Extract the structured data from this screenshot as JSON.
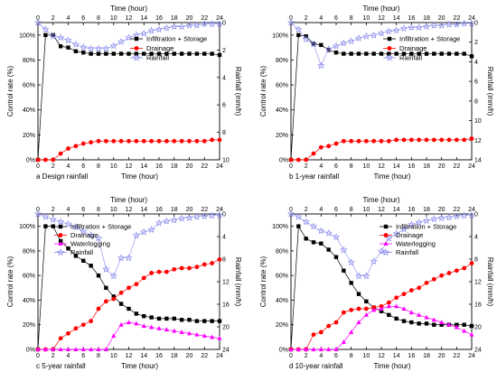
{
  "chart_data": [
    {
      "type": "line",
      "caption": "a Design rainfall",
      "x_top_label": "Time (hour)",
      "x_bottom_label": "Time (hour)",
      "ylabel": "Control rate (%)",
      "y2label": "Rainfall (mm/h)",
      "xlim": [
        0,
        24
      ],
      "xticks": [
        0,
        2,
        4,
        6,
        8,
        10,
        12,
        14,
        16,
        18,
        20,
        22,
        24
      ],
      "ylim": [
        0,
        110
      ],
      "yticks": [
        "0%",
        "20%",
        "40%",
        "60%",
        "80%",
        "100%"
      ],
      "ytick_values": [
        0,
        20,
        40,
        60,
        80,
        100
      ],
      "y2lim": [
        0,
        10
      ],
      "y2ticks": [
        0,
        2,
        4,
        6,
        8,
        10
      ],
      "legend_position": "top-right",
      "x": [
        0,
        1,
        2,
        3,
        4,
        5,
        6,
        7,
        8,
        9,
        10,
        11,
        12,
        13,
        14,
        15,
        16,
        17,
        18,
        19,
        20,
        21,
        22,
        23,
        24
      ],
      "series": [
        {
          "name": "Infiltration + Storage",
          "axis": "left",
          "marker": "square",
          "color": "#000000",
          "values": [
            0,
            100,
            100,
            91,
            90,
            87,
            86,
            85,
            85,
            85,
            85,
            85,
            85,
            85,
            85,
            85,
            85,
            85,
            85,
            85,
            85,
            85,
            85,
            85,
            84
          ]
        },
        {
          "name": "Drainage",
          "axis": "left",
          "marker": "circle",
          "color": "#ff0000",
          "values": [
            0,
            0,
            0,
            5,
            9,
            11,
            13,
            14,
            15,
            15,
            15,
            15,
            15,
            15,
            15,
            15,
            15,
            15,
            15,
            15,
            15,
            15,
            15,
            16,
            16
          ]
        },
        {
          "name": "Rainfall",
          "axis": "right",
          "marker": "star",
          "color": "#8888ee",
          "values": [
            0,
            0.5,
            1.0,
            1.1,
            1.3,
            1.6,
            1.8,
            1.9,
            1.9,
            1.9,
            1.7,
            1.4,
            1.1,
            0.9,
            0.8,
            0.6,
            0.5,
            0.4,
            0.3,
            0.3,
            0.2,
            0.2,
            0.1,
            0.1,
            0.1
          ]
        }
      ]
    },
    {
      "type": "line",
      "caption": "b 1-year rainfall",
      "x_top_label": "Time (hour)",
      "x_bottom_label": "Time (hour)",
      "ylabel": "Control rate (%)",
      "y2label": "Rainfall (mm/h)",
      "xlim": [
        0,
        24
      ],
      "xticks": [
        0,
        2,
        4,
        6,
        8,
        10,
        12,
        14,
        16,
        18,
        20,
        22,
        24
      ],
      "ylim": [
        0,
        110
      ],
      "yticks": [
        "0%",
        "20%",
        "40%",
        "60%",
        "80%",
        "100%"
      ],
      "ytick_values": [
        0,
        20,
        40,
        60,
        80,
        100
      ],
      "y2lim": [
        0,
        14
      ],
      "y2ticks": [
        0,
        2,
        4,
        6,
        8,
        10,
        12,
        14
      ],
      "legend_position": "top-right",
      "x": [
        0,
        1,
        2,
        3,
        4,
        5,
        6,
        7,
        8,
        9,
        10,
        11,
        12,
        13,
        14,
        15,
        16,
        17,
        18,
        19,
        20,
        21,
        22,
        23,
        24
      ],
      "series": [
        {
          "name": "Infiltration + Storage",
          "axis": "left",
          "marker": "square",
          "color": "#000000",
          "values": [
            0,
            100,
            99,
            93,
            92,
            88,
            86,
            85,
            85,
            85,
            85,
            85,
            85,
            85,
            85,
            85,
            85,
            85,
            85,
            85,
            85,
            85,
            85,
            85,
            83
          ]
        },
        {
          "name": "Drainage",
          "axis": "left",
          "marker": "circle",
          "color": "#ff0000",
          "values": [
            0,
            0,
            0,
            5,
            10,
            11,
            13,
            15,
            15,
            15,
            15,
            15,
            15,
            15,
            16,
            16,
            16,
            16,
            16,
            16,
            16,
            16,
            16,
            16,
            17
          ]
        },
        {
          "name": "Rainfall",
          "axis": "right",
          "marker": "star",
          "color": "#8888ee",
          "values": [
            0,
            0.7,
            1.7,
            2.2,
            4.4,
            2.7,
            2.4,
            2.1,
            1.9,
            1.6,
            1.4,
            1.3,
            1.1,
            0.9,
            0.8,
            0.6,
            0.5,
            0.5,
            0.4,
            0.3,
            0.3,
            0.2,
            0.2,
            0.1,
            0.1
          ]
        }
      ]
    },
    {
      "type": "line",
      "caption": "c 5-year rainfall",
      "x_top_label": "Time (hour)",
      "x_bottom_label": "Time (hour)",
      "ylabel": "Control rate (%)",
      "y2label": "Rainfall (mm/h)",
      "xlim": [
        0,
        24
      ],
      "xticks": [
        0,
        2,
        4,
        6,
        8,
        10,
        12,
        14,
        16,
        18,
        20,
        22,
        24
      ],
      "ylim": [
        0,
        110
      ],
      "yticks": [
        "0%",
        "20%",
        "40%",
        "60%",
        "80%",
        "100%"
      ],
      "ytick_values": [
        0,
        20,
        40,
        60,
        80,
        100
      ],
      "y2lim": [
        0,
        24
      ],
      "y2ticks": [
        0,
        4,
        8,
        12,
        16,
        20,
        24
      ],
      "legend_position": "top-left",
      "x": [
        0,
        1,
        2,
        3,
        4,
        5,
        6,
        7,
        8,
        9,
        10,
        11,
        12,
        13,
        14,
        15,
        16,
        17,
        18,
        19,
        20,
        21,
        22,
        23,
        24
      ],
      "series": [
        {
          "name": "Infiltration + Storage",
          "axis": "left",
          "marker": "square",
          "color": "#000000",
          "values": [
            0,
            100,
            100,
            88,
            82,
            76,
            72,
            68,
            60,
            50,
            43,
            37,
            33,
            29,
            27,
            26,
            25,
            25,
            25,
            24,
            24,
            23,
            23,
            23,
            23
          ]
        },
        {
          "name": "Drainage",
          "axis": "left",
          "marker": "circle",
          "color": "#ff0000",
          "values": [
            0,
            0,
            0,
            9,
            13,
            17,
            20,
            23,
            33,
            39,
            41,
            46,
            50,
            53,
            58,
            62,
            63,
            63,
            65,
            66,
            66,
            67,
            69,
            70,
            73
          ]
        },
        {
          "name": "Waterlogging",
          "axis": "left",
          "marker": "triangle",
          "color": "#ff00ff",
          "values": [
            0,
            0,
            0,
            0,
            0,
            0,
            0,
            0,
            0,
            0,
            11,
            20,
            22,
            21,
            19,
            18,
            17,
            16,
            15,
            14,
            13,
            12,
            11,
            10,
            9
          ]
        },
        {
          "name": "Rainfall",
          "axis": "right",
          "marker": "star",
          "color": "#8888ee",
          "values": [
            0,
            0.5,
            1.0,
            1.4,
            1.8,
            2.3,
            3.1,
            3.8,
            4.3,
            9.8,
            11.0,
            7.8,
            7.8,
            3.8,
            3.2,
            2.8,
            1.6,
            1.3,
            1.1,
            0.8,
            0.7,
            0.5,
            0.4,
            0.3,
            0.2
          ]
        }
      ]
    },
    {
      "type": "line",
      "caption": "d 10-year rainfall",
      "x_top_label": "Time (hour)",
      "x_bottom_label": "Time (hour)",
      "ylabel": "Control rate (%)",
      "y2label": "Rainfall (mm/h)",
      "xlim": [
        0,
        24
      ],
      "xticks": [
        0,
        2,
        4,
        6,
        8,
        10,
        12,
        14,
        16,
        18,
        20,
        22,
        24
      ],
      "ylim": [
        0,
        110
      ],
      "yticks": [
        "0%",
        "20%",
        "40%",
        "60%",
        "80%",
        "100%"
      ],
      "ytick_values": [
        0,
        20,
        40,
        60,
        80,
        100
      ],
      "y2lim": [
        0,
        24
      ],
      "y2ticks": [
        0,
        4,
        8,
        12,
        16,
        20,
        24
      ],
      "legend_position": "top-right",
      "x": [
        0,
        1,
        2,
        3,
        4,
        5,
        6,
        7,
        8,
        9,
        10,
        11,
        12,
        13,
        14,
        15,
        16,
        17,
        18,
        19,
        20,
        21,
        22,
        23,
        24
      ],
      "series": [
        {
          "name": "Infiltration + Storage",
          "axis": "left",
          "marker": "square",
          "color": "#000000",
          "values": [
            0,
            100,
            90,
            87,
            86,
            81,
            75,
            64,
            54,
            45,
            39,
            34,
            31,
            28,
            25,
            23,
            22,
            21,
            21,
            20,
            20,
            20,
            20,
            20,
            19
          ]
        },
        {
          "name": "Drainage",
          "axis": "left",
          "marker": "circle",
          "color": "#ff0000",
          "values": [
            0,
            0,
            0,
            12,
            14,
            19,
            22,
            30,
            32,
            33,
            33,
            34,
            35,
            38,
            42,
            45,
            48,
            50,
            54,
            57,
            60,
            62,
            64,
            66,
            70
          ]
        },
        {
          "name": "Waterlogging",
          "axis": "left",
          "marker": "triangle",
          "color": "#ff00ff",
          "values": [
            0,
            0,
            0,
            0,
            0,
            0,
            0,
            6,
            14,
            22,
            28,
            32,
            33,
            35,
            35,
            33,
            30,
            28,
            26,
            24,
            22,
            20,
            18,
            15,
            12
          ]
        },
        {
          "name": "Rainfall",
          "axis": "right",
          "marker": "star",
          "color": "#8888ee",
          "values": [
            0,
            0.5,
            1.4,
            2.2,
            3.0,
            3.4,
            4.1,
            6.4,
            8.6,
            11.0,
            11.0,
            8.4,
            6.6,
            4.3,
            3.5,
            2.7,
            1.9,
            1.5,
            1.2,
            0.9,
            0.7,
            0.6,
            0.4,
            0.3,
            0.2
          ]
        }
      ]
    }
  ]
}
